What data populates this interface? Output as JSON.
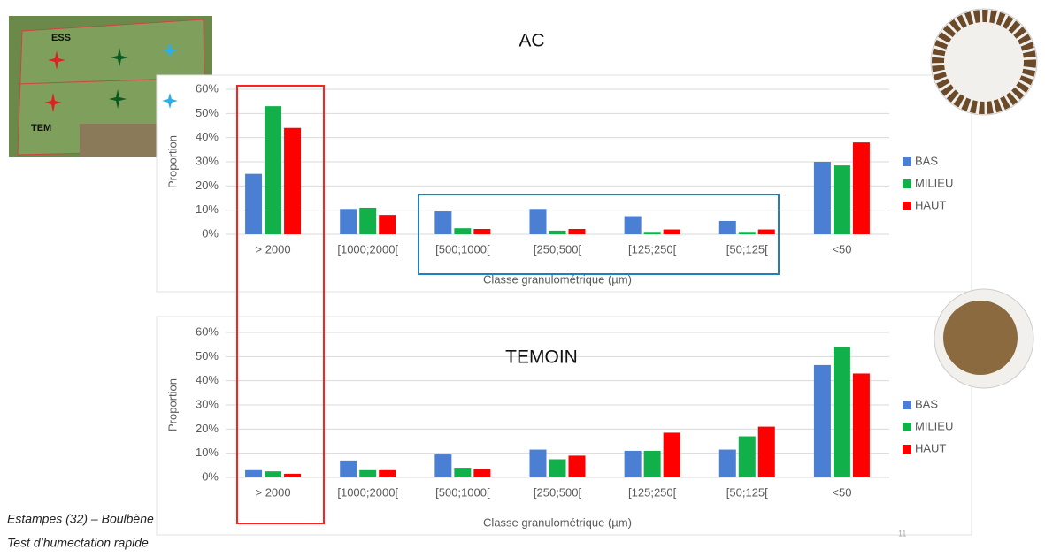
{
  "chart_data": [
    {
      "type": "bar",
      "title": "AC",
      "xlabel": "Classe granulométrique (µm)",
      "ylabel": "Proportion",
      "categories": [
        "> 2000",
        "[1000;2000[",
        "[500;1000[",
        "[250;500[",
        "[125;250[",
        "[50;125[",
        "<50"
      ],
      "series": [
        {
          "name": "BAS",
          "color": "#4a7fd4",
          "values": [
            25,
            10.5,
            9.5,
            10.5,
            7.5,
            5.5,
            30
          ]
        },
        {
          "name": "MILIEU",
          "color": "#12b04a",
          "values": [
            53,
            11,
            2.5,
            1.5,
            1,
            1,
            28.5
          ]
        },
        {
          "name": "HAUT",
          "color": "#ff0000",
          "values": [
            44,
            8,
            2.2,
            2.2,
            2,
            2,
            38
          ]
        }
      ],
      "ylim": [
        0,
        60
      ],
      "yticks": [
        {
          "value": 0,
          "label": "0%"
        },
        {
          "value": 10,
          "label": "10%"
        },
        {
          "value": 20,
          "label": "20%"
        },
        {
          "value": 30,
          "label": "30%"
        },
        {
          "value": 40,
          "label": "40%"
        },
        {
          "value": 50,
          "label": "50%"
        },
        {
          "value": 60,
          "label": "60%"
        }
      ],
      "grid": true,
      "legend": "right"
    },
    {
      "type": "bar",
      "title": "TEMOIN",
      "xlabel": "Classe granulométrique (µm)",
      "ylabel": "Proportion",
      "categories": [
        "> 2000",
        "[1000;2000[",
        "[500;1000[",
        "[250;500[",
        "[125;250[",
        "[50;125[",
        "<50"
      ],
      "series": [
        {
          "name": "BAS",
          "color": "#4a7fd4",
          "values": [
            3,
            7,
            9.5,
            11.5,
            11,
            11.5,
            46.5
          ]
        },
        {
          "name": "MILIEU",
          "color": "#12b04a",
          "values": [
            2.5,
            3,
            4,
            7.5,
            11,
            17,
            54
          ]
        },
        {
          "name": "HAUT",
          "color": "#ff0000",
          "values": [
            1.5,
            3,
            3.5,
            9,
            18.5,
            21,
            43
          ]
        }
      ],
      "ylim": [
        0,
        60
      ],
      "yticks": [
        {
          "value": 0,
          "label": "0%"
        },
        {
          "value": 10,
          "label": "10%"
        },
        {
          "value": 20,
          "label": "20%"
        },
        {
          "value": 30,
          "label": "30%"
        },
        {
          "value": 40,
          "label": "40%"
        },
        {
          "value": 50,
          "label": "50%"
        },
        {
          "value": 60,
          "label": "60%"
        }
      ],
      "grid": true,
      "legend": "right"
    }
  ],
  "map_labels": [
    "ESS",
    "TEM"
  ],
  "footer": [
    "Estampes (32) – Boulbène",
    "Test d’humectation rapide"
  ],
  "page_number": "11"
}
